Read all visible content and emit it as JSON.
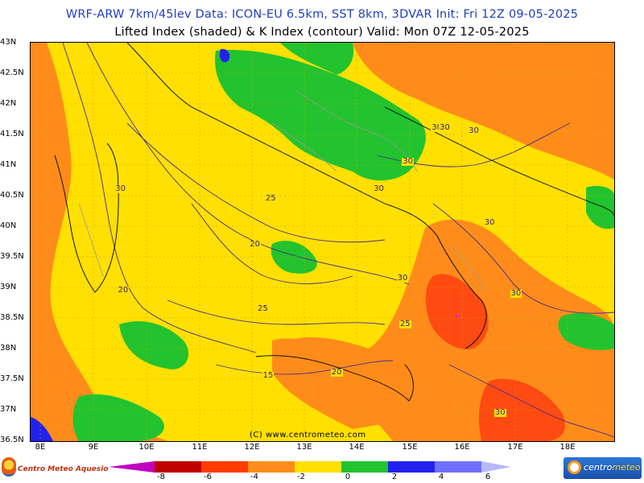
{
  "header": {
    "line1": "WRF-ARW 7km/45lev   Data: ICON-EU 6.5km, SST 8km, 3DVAR   Init: Fri 12Z 09-05-2025",
    "line2": "Lifted Index (shaded) & K Index (contour)   Valid: Mon 07Z 12-05-2025"
  },
  "axes": {
    "lat_labels": [
      "43N",
      "42.5N",
      "42N",
      "41.5N",
      "41N",
      "40.5N",
      "40N",
      "39.5N",
      "39N",
      "38.5N",
      "38N",
      "37.5N",
      "37N",
      "36.5N"
    ],
    "lon_labels": [
      "8E",
      "9E",
      "10E",
      "11E",
      "12E",
      "13E",
      "14E",
      "15E",
      "16E",
      "17E",
      "18E"
    ]
  },
  "contour_labels": [
    {
      "text": "30",
      "lon": 9.5,
      "lat": 40.6
    },
    {
      "text": "20",
      "lon": 9.55,
      "lat": 38.95
    },
    {
      "text": "25",
      "lon": 12.35,
      "lat": 40.45
    },
    {
      "text": "20",
      "lon": 12.05,
      "lat": 39.7
    },
    {
      "text": "30",
      "lon": 14.85,
      "lat": 39.15
    },
    {
      "text": "25",
      "lon": 12.2,
      "lat": 38.65
    },
    {
      "text": "25",
      "lon": 14.9,
      "lat": 38.4
    },
    {
      "text": "20",
      "lon": 13.6,
      "lat": 37.6
    },
    {
      "text": "15",
      "lon": 12.3,
      "lat": 37.55
    },
    {
      "text": "30",
      "lon": 15.5,
      "lat": 41.6
    },
    {
      "text": "30",
      "lon": 16.2,
      "lat": 41.55
    },
    {
      "text": "30",
      "lon": 14.95,
      "lat": 41.05
    },
    {
      "text": "30",
      "lon": 14.4,
      "lat": 40.6
    },
    {
      "text": "30",
      "lon": 16.5,
      "lat": 40.05
    },
    {
      "text": "30",
      "lon": 17.0,
      "lat": 38.9
    },
    {
      "text": "30",
      "lon": 16.7,
      "lat": 36.95
    },
    {
      "text": "30",
      "lon": 15.65,
      "lat": 41.6
    }
  ],
  "copyright": "(C) www.centrometeo.com",
  "legend": {
    "ticks": [
      "-8",
      "-6",
      "-4",
      "-2",
      "0",
      "2",
      "4",
      "6"
    ],
    "colors": [
      "#c000c0",
      "#c00000",
      "#ff3c00",
      "#ff8c1a",
      "#ffe000",
      "#22c32e",
      "#2222ee",
      "#7070ff",
      "#b8b8ff"
    ]
  },
  "logos": {
    "left": "Centro Meteo Aquesio",
    "right_prefix": "centro",
    "right_suffix": "meteo"
  },
  "palette": {
    "yellow": "#ffe000",
    "orange": "#ff8c1a",
    "red_orange": "#ff4a12",
    "green": "#22c32e",
    "blue": "#2222ee",
    "magenta_ring": "#e23a6a",
    "contour": "#4b2c8a",
    "coast": "#000000",
    "border": "#9a9a9a"
  }
}
